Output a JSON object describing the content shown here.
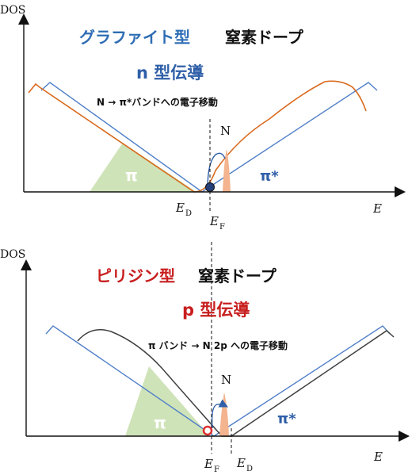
{
  "top_panel": {
    "y_axis_label": "DOS",
    "x_axis_label": "E",
    "title_part1": "グラファイト型",
    "title_part2": "窒素ドープ",
    "subtitle": "n 型伝導",
    "note": "N → π*バンドへの電子移動",
    "n_label": "N",
    "pi_label": "π",
    "pi_star_label": "π*",
    "ed_label": "E",
    "ed_sub": "D",
    "ef_label": "E",
    "ef_sub": "F"
  },
  "bottom_panel": {
    "y_axis_label": "DOS",
    "x_axis_label": "E",
    "title_part1": "ピリジン型",
    "title_part2": "窒素ドープ",
    "subtitle": "p 型伝導",
    "note": "π バンド → N 2p への電子移動",
    "n_label": "N",
    "pi_label": "π",
    "pi_star_label": "π*",
    "ef_label": "E",
    "ef_sub": "F",
    "ed_label": "E",
    "ed_sub": "D"
  },
  "colors": {
    "blue_line": "#4f7fc8",
    "orange_line": "#d96a1e",
    "dark_line": "#404040",
    "green_fill": "#cfe3b8",
    "peak_fill": "#f3b48f",
    "red_circle": "#e03030",
    "dark_blue_dot": "#243f7a"
  }
}
